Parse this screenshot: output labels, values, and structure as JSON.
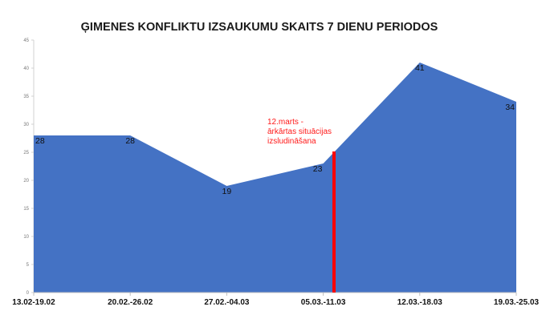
{
  "chart_data": {
    "type": "area",
    "title": "ĢIMENES KONFLIKTU IZSAUKUMU SKAITS 7 DIENU PERIODOS",
    "xlabel": "",
    "ylabel": "",
    "categories": [
      "13.02-19.02",
      "20.02.-26.02",
      "27.02.-04.03",
      "05.03.-11.03",
      "12.03.-18.03",
      "19.03.-25.03"
    ],
    "values": [
      28,
      28,
      19,
      23,
      41,
      34
    ],
    "ylim": [
      0,
      45
    ],
    "yticks": [
      0,
      5,
      10,
      15,
      20,
      25,
      30,
      35,
      40,
      45
    ],
    "grid": false,
    "legend": "none",
    "area_color": "#4472c4",
    "annotation": {
      "lines": [
        "12.marts -",
        "ārkārtas situācijas",
        "izsludināšana"
      ],
      "color": "#ff0000",
      "marker_position": "between 05.03.-11.03 and 12.03.-18.03"
    }
  }
}
